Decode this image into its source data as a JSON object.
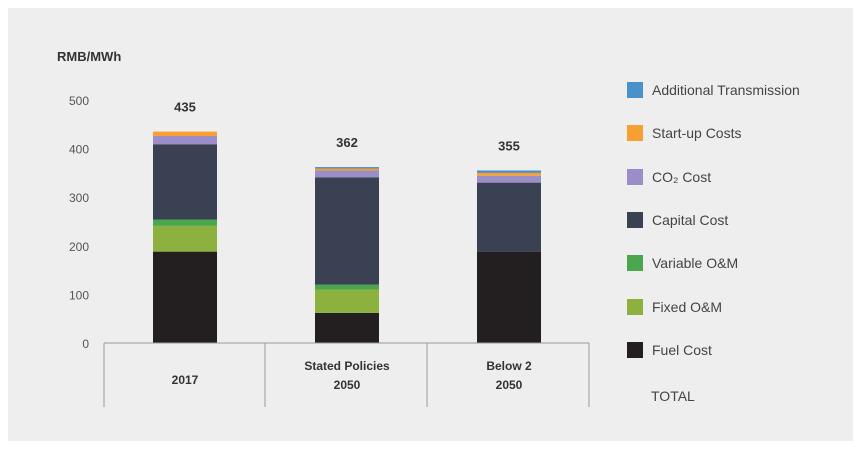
{
  "chart_data": {
    "type": "bar",
    "stacked": true,
    "ylabel": "RMB/MWh",
    "ylim": [
      0,
      500
    ],
    "yticks": [
      0,
      100,
      200,
      300,
      400,
      500
    ],
    "categories": [
      {
        "line1": "2017",
        "line2": ""
      },
      {
        "line1": "Stated Policies",
        "line2": "2050"
      },
      {
        "line1": "Below 2",
        "line2": "2050"
      }
    ],
    "totals": [
      "435",
      "362",
      "355"
    ],
    "series": [
      {
        "name": "Fuel Cost",
        "color": "#231f20",
        "values": [
          188,
          62,
          188
        ]
      },
      {
        "name": "Fixed O&M",
        "color": "#8db13f",
        "values": [
          53,
          48,
          0
        ]
      },
      {
        "name": "Variable O&M",
        "color": "#4aa74d",
        "values": [
          13,
          10,
          0
        ]
      },
      {
        "name": "Capital Cost",
        "color": "#3a4153",
        "values": [
          155,
          221,
          142
        ]
      },
      {
        "name": "CO₂ Cost",
        "color": "#9b8dc7",
        "values": [
          17,
          14,
          14
        ]
      },
      {
        "name": "Start-up Costs",
        "color": "#f79f31",
        "values": [
          9,
          4,
          6
        ]
      },
      {
        "name": "Additional Transmission",
        "color": "#4a90c9",
        "values": [
          0,
          3,
          5
        ]
      }
    ],
    "legend_order": [
      6,
      5,
      4,
      3,
      2,
      1,
      0
    ],
    "total_label": "TOTAL",
    "grid": false,
    "legend_position": "right"
  }
}
